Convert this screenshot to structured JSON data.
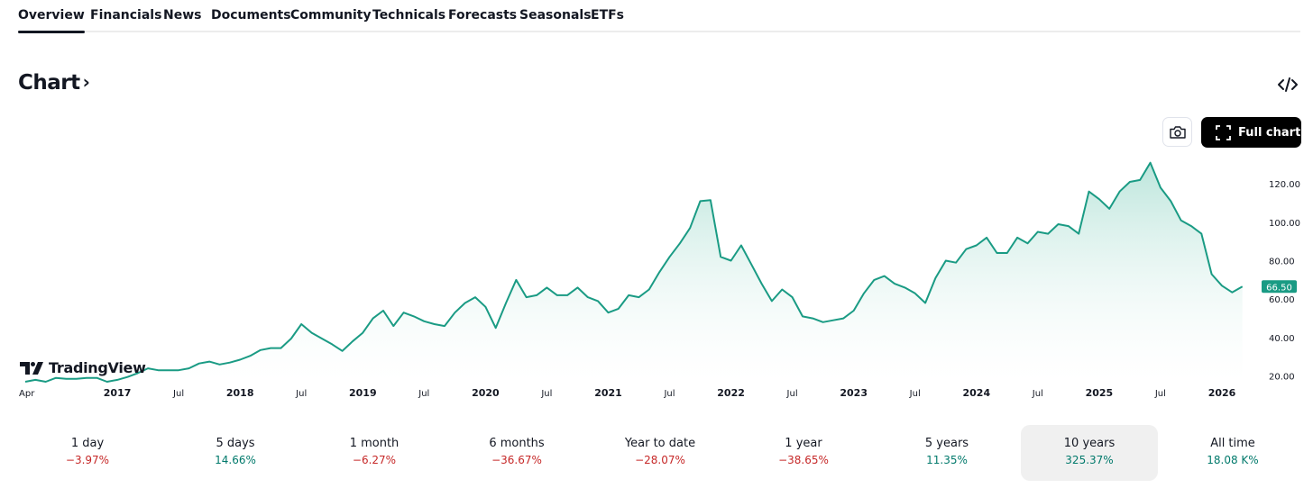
{
  "tabs": [
    {
      "label": "Overview",
      "active": true
    },
    {
      "label": "Financials"
    },
    {
      "label": "News"
    },
    {
      "label": "Documents"
    },
    {
      "label": "Community"
    },
    {
      "label": "Technicals"
    },
    {
      "label": "Forecasts"
    },
    {
      "label": "Seasonals"
    },
    {
      "label": "ETFs"
    }
  ],
  "section": {
    "title": "Chart",
    "chevron": "›",
    "embed_icon": "code-embed-icon"
  },
  "toolbar": {
    "snapshot_icon": "camera-icon",
    "full_chart_label": "Full chart",
    "full_chart_icon": "fullscreen-icon"
  },
  "branding": {
    "logo_text": "TradingView"
  },
  "colors": {
    "line": "#1a9b84",
    "fill_top": "#b9e4da",
    "fill_bottom": "#ffffff",
    "price_badge": "#1a9b84",
    "negative": "#c62828",
    "positive": "#00796b"
  },
  "chart_data": {
    "type": "area",
    "x_unit": "months since Apr 2016",
    "x_tick_labels": [
      {
        "label": "Apr",
        "x": 0
      },
      {
        "label": "2017",
        "x": 9
      },
      {
        "label": "Jul",
        "x": 15
      },
      {
        "label": "2018",
        "x": 21
      },
      {
        "label": "Jul",
        "x": 27
      },
      {
        "label": "2019",
        "x": 33
      },
      {
        "label": "Jul",
        "x": 39
      },
      {
        "label": "2020",
        "x": 45
      },
      {
        "label": "Jul",
        "x": 51
      },
      {
        "label": "2021",
        "x": 57
      },
      {
        "label": "Jul",
        "x": 63
      },
      {
        "label": "2022",
        "x": 69
      },
      {
        "label": "Jul",
        "x": 75
      },
      {
        "label": "2023",
        "x": 81
      },
      {
        "label": "Jul",
        "x": 87
      },
      {
        "label": "2024",
        "x": 93
      },
      {
        "label": "Jul",
        "x": 99
      },
      {
        "label": "2025",
        "x": 105
      },
      {
        "label": "Jul",
        "x": 111
      },
      {
        "label": "2026",
        "x": 117
      }
    ],
    "y_ticks": [
      20,
      40,
      60,
      80,
      100,
      120
    ],
    "y_tick_labels": [
      "20.00",
      "40.00",
      "60.00",
      "80.00",
      "100.00",
      "120.00"
    ],
    "ylim": [
      17,
      136
    ],
    "xlim": [
      0,
      120
    ],
    "last_price": 66.5,
    "last_price_label": "66.50",
    "grid": false,
    "values": [
      17,
      18,
      17,
      19,
      18.5,
      18.5,
      19,
      19,
      17,
      18,
      19.5,
      21.5,
      24,
      23,
      23,
      23,
      24,
      26.5,
      27.5,
      26,
      27,
      28.5,
      30.5,
      33.5,
      34.5,
      34.5,
      39.5,
      47,
      42.5,
      39.5,
      36.5,
      33,
      38,
      42.5,
      50,
      54,
      46,
      53,
      51,
      48.5,
      47,
      46,
      53,
      58,
      61,
      56,
      45,
      58,
      70,
      61,
      62,
      66,
      62,
      62,
      66,
      61,
      59,
      53,
      55,
      62,
      61,
      65,
      74,
      82,
      89,
      97,
      111,
      111.5,
      82,
      80,
      88,
      78,
      68,
      59,
      65,
      61,
      51,
      50,
      48,
      49,
      50,
      54,
      63,
      70,
      72,
      68,
      66,
      63,
      58,
      71,
      80,
      79,
      86,
      88,
      92,
      84,
      84,
      92,
      89,
      95,
      94,
      99,
      98,
      94,
      116,
      112,
      107,
      116,
      121,
      122,
      131,
      118,
      111,
      101,
      98,
      94,
      73,
      67,
      63.5,
      66.5
    ]
  },
  "periods": [
    {
      "label": "1 day",
      "value": "−3.97%",
      "trend": "neg"
    },
    {
      "label": "5 days",
      "value": "14.66%",
      "trend": "pos"
    },
    {
      "label": "1 month",
      "value": "−6.27%",
      "trend": "neg"
    },
    {
      "label": "6 months",
      "value": "−36.67%",
      "trend": "neg"
    },
    {
      "label": "Year to date",
      "value": "−28.07%",
      "trend": "neg"
    },
    {
      "label": "1 year",
      "value": "−38.65%",
      "trend": "neg"
    },
    {
      "label": "5 years",
      "value": "11.35%",
      "trend": "pos"
    },
    {
      "label": "10 years",
      "value": "325.37%",
      "trend": "pos",
      "active": true
    },
    {
      "label": "All time",
      "value": "18.08 K%",
      "trend": "pos"
    }
  ]
}
